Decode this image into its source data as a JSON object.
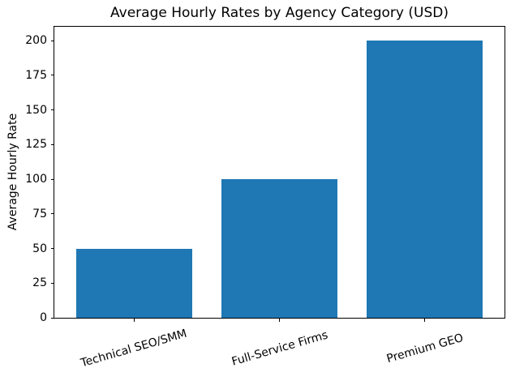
{
  "chart_data": {
    "type": "bar",
    "title": "Average Hourly Rates by Agency Category (USD)",
    "xlabel": "",
    "ylabel": "Average Hourly Rate",
    "categories": [
      "Technical SEO/SMM",
      "Full-Service Firms",
      "Premium GEO"
    ],
    "values": [
      50,
      100,
      200
    ],
    "yticks": [
      0,
      25,
      50,
      75,
      100,
      125,
      150,
      175,
      200
    ],
    "ylim": [
      0,
      210
    ],
    "bar_color": "#1f77b4",
    "background_color": "#ffffff",
    "text_color": "#000000",
    "x_tick_rotation_deg": 16,
    "grid": false,
    "legend": "none"
  }
}
